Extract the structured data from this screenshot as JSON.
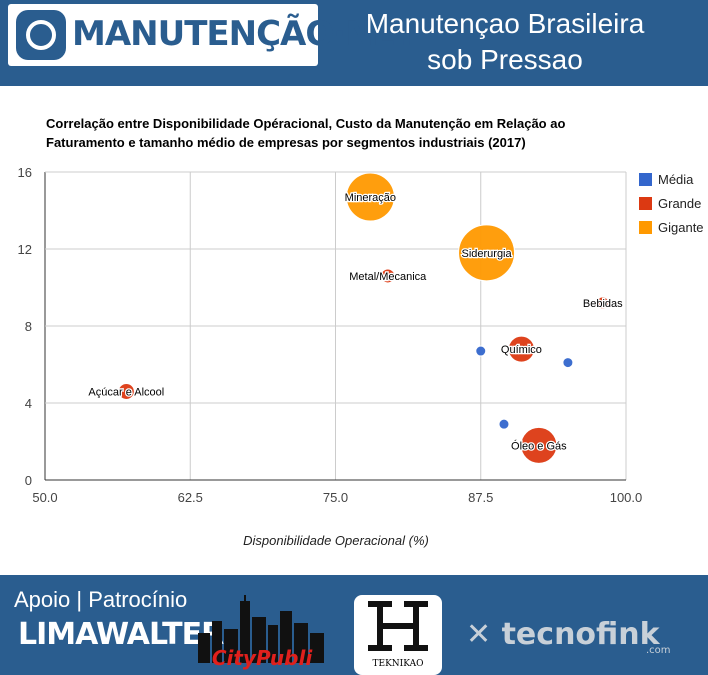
{
  "header": {
    "logo_text": "MANUTENÇÃO·NET",
    "title_line1": "Manutençao Brasileira",
    "title_line2": "sob Pressao"
  },
  "chart_data": {
    "type": "bubble",
    "title_line1": "Correlação entre Disponibilidade Opéracional, Custo da Manutenção em Relação ao",
    "title_line2": "Faturamento e tamanho médio de empresas por segmentos industriais (2017)",
    "xlabel": "Disponibilidade Operacional (%)",
    "ylabel": "",
    "xlim": [
      50,
      100
    ],
    "ylim": [
      0,
      16
    ],
    "x_ticks": [
      "50.0",
      "62.5",
      "75.0",
      "87.5",
      "100.0"
    ],
    "y_ticks": [
      "0",
      "4",
      "8",
      "12",
      "16"
    ],
    "grid": true,
    "legend_position": "right",
    "legend": [
      {
        "name": "Média",
        "color": "#3366cc"
      },
      {
        "name": "Grande",
        "color": "#dc3912"
      },
      {
        "name": "Gigante",
        "color": "#ff9900"
      }
    ],
    "points": [
      {
        "label": "Mineração",
        "x": 78,
        "y": 14.7,
        "size": "Gigante",
        "color": "#ff9900",
        "r": 24
      },
      {
        "label": "Siderurgia",
        "x": 88,
        "y": 11.8,
        "size": "Gigante",
        "color": "#ff9900",
        "r": 28
      },
      {
        "label": "Metal/Mecanica",
        "x": 79.5,
        "y": 10.6,
        "size": "Grande",
        "color": "#dc3912",
        "r": 7
      },
      {
        "label": "Bebidas",
        "x": 98,
        "y": 9.2,
        "size": "Grande",
        "color": "#dc3912",
        "r": 6
      },
      {
        "label": "Químico",
        "x": 91,
        "y": 6.8,
        "size": "Grande",
        "color": "#dc3912",
        "r": 13
      },
      {
        "label": "Açúcar e Alcool",
        "x": 57,
        "y": 4.6,
        "size": "Grande",
        "color": "#dc3912",
        "r": 8
      },
      {
        "label": "Óleo e Gás",
        "x": 92.5,
        "y": 1.8,
        "size": "Grande",
        "color": "#dc3912",
        "r": 18
      },
      {
        "label": "",
        "x": 87.5,
        "y": 6.7,
        "size": "Média",
        "color": "#3366cc",
        "r": 5
      },
      {
        "label": "",
        "x": 95,
        "y": 6.1,
        "size": "Média",
        "color": "#3366cc",
        "r": 5
      },
      {
        "label": "",
        "x": 89.5,
        "y": 2.9,
        "size": "Média",
        "color": "#3366cc",
        "r": 5
      }
    ]
  },
  "footer": {
    "title": "Apoio | Patrocínio",
    "sponsors": {
      "limawalter": "LIMAWALTER",
      "citypubli": "CityPubli",
      "teknikao": "TEKNIKAO",
      "tecnofink": "tecnofink",
      "tecnofink_suffix": ".com"
    }
  }
}
